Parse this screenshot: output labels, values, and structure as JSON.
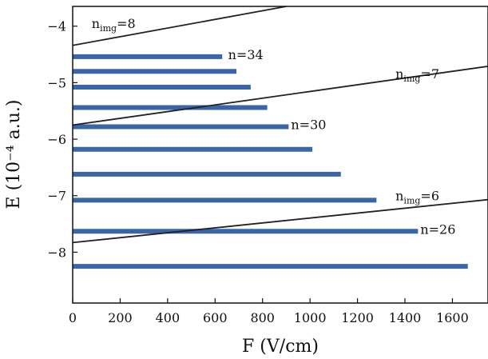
{
  "chart_data": {
    "type": "bar",
    "xlabel": "F (V/cm)",
    "ylabel": "E (10⁻⁴ a.u.)",
    "xlim": [
      0,
      1750
    ],
    "ylim": [
      -8.9,
      -3.65
    ],
    "x_ticks": [
      0,
      200,
      400,
      600,
      800,
      1000,
      1200,
      1400,
      1600
    ],
    "x_tick_labels": [
      "0",
      "200",
      "400",
      "600",
      "800",
      "1000",
      "1200",
      "1400",
      "1600"
    ],
    "y_ticks": [
      -4,
      -5,
      -6,
      -7,
      -8
    ],
    "y_tick_labels": [
      "−4",
      "−5",
      "−6",
      "−7",
      "−8"
    ],
    "bar_color": "#3a66a8",
    "line_color": "#222222",
    "bars": [
      {
        "y": -4.54,
        "x_end": 630
      },
      {
        "y": -4.8,
        "x_end": 690
      },
      {
        "y": -5.08,
        "x_end": 750
      },
      {
        "y": -5.44,
        "x_end": 820
      },
      {
        "y": -5.78,
        "x_end": 910
      },
      {
        "y": -6.18,
        "x_end": 1010
      },
      {
        "y": -6.62,
        "x_end": 1130
      },
      {
        "y": -7.08,
        "x_end": 1280
      },
      {
        "y": -7.63,
        "x_end": 1455
      },
      {
        "y": -8.25,
        "x_end": 1665
      }
    ],
    "lines": [
      {
        "x": [
          0,
          900
        ],
        "y": [
          -4.34,
          -3.65
        ]
      },
      {
        "x": [
          0,
          1750
        ],
        "y": [
          -5.75,
          -4.71
        ]
      },
      {
        "x": [
          0,
          1750
        ],
        "y": [
          -7.83,
          -7.07
        ]
      }
    ],
    "annotations": [
      {
        "text": "n=34",
        "x": 655,
        "y": -4.5,
        "color": "#3a66a8",
        "anchor": "start",
        "main": "n=34",
        "sub": ""
      },
      {
        "text": "n=30",
        "x": 920,
        "y": -5.74,
        "color": "#3a66a8",
        "anchor": "start",
        "main": "n=30",
        "sub": ""
      },
      {
        "text": "n=26",
        "x": 1465,
        "y": -7.59,
        "color": "#3a66a8",
        "anchor": "start",
        "main": "n=26",
        "sub": ""
      },
      {
        "text": "n_img=8",
        "x": 80,
        "y": -3.95,
        "color": "#111111",
        "anchor": "start",
        "main": "n",
        "sub": "img",
        "rest": "=8"
      },
      {
        "text": "n_img=7",
        "x": 1360,
        "y": -4.84,
        "color": "#111111",
        "anchor": "start",
        "main": "n",
        "sub": "img",
        "rest": "=7"
      },
      {
        "text": "n_img=6",
        "x": 1360,
        "y": -7.0,
        "color": "#111111",
        "anchor": "start",
        "main": "n",
        "sub": "img",
        "rest": "=6"
      }
    ]
  }
}
